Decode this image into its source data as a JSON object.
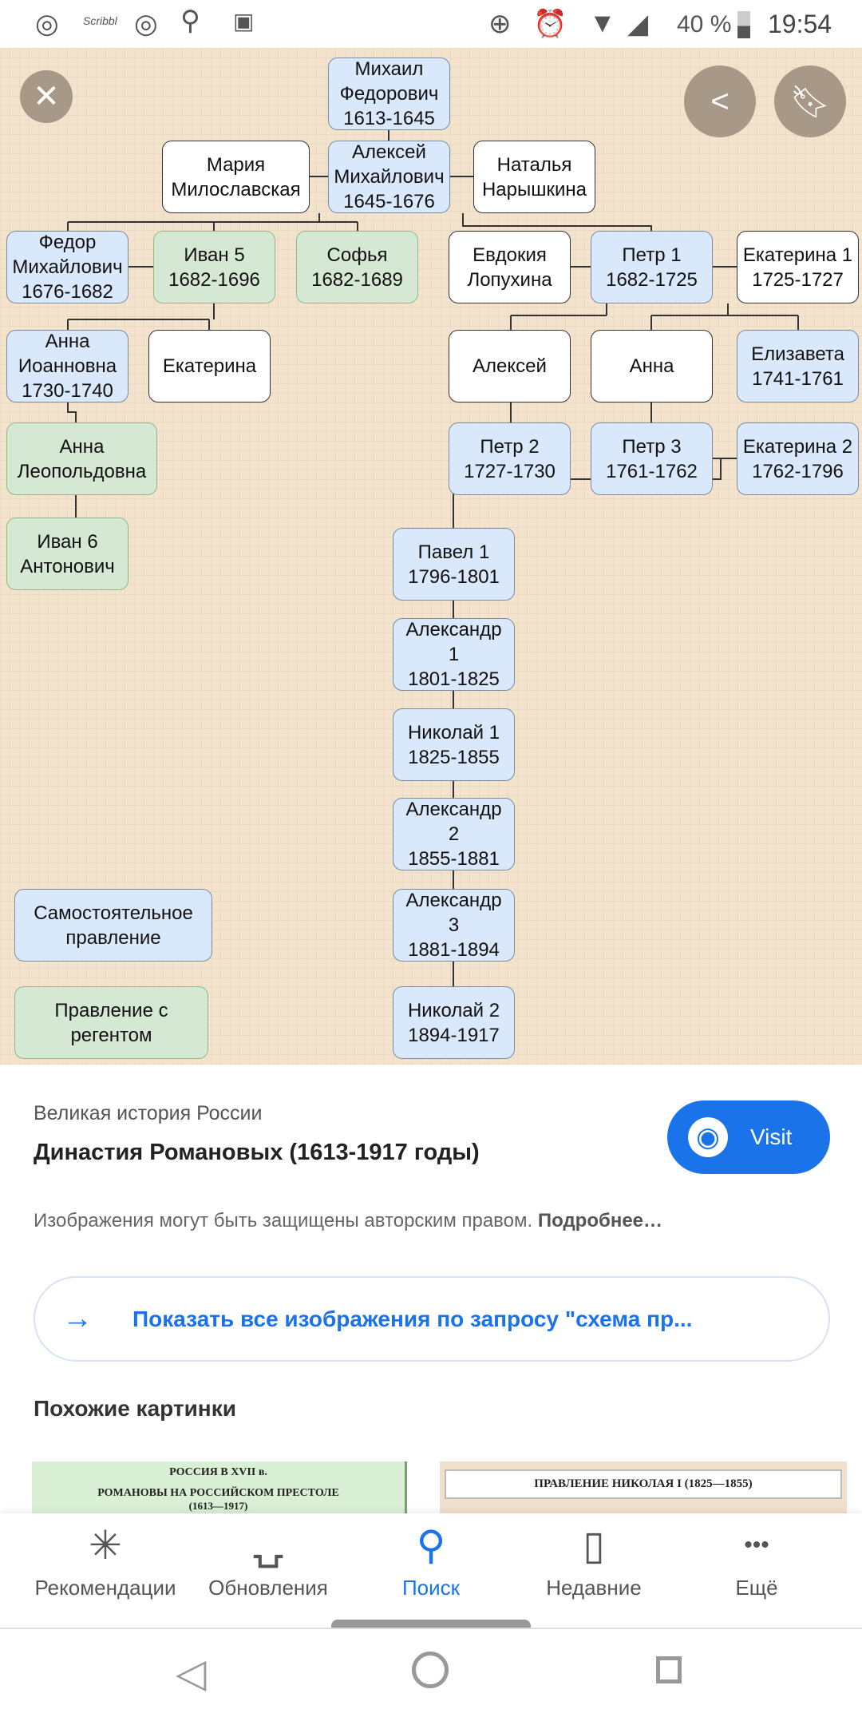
{
  "status_bar": {
    "icons": [
      "whatsapp-icon",
      "scribbl-icon",
      "viber-icon",
      "search-icon",
      "toggle-icon",
      "data-saver-icon",
      "alarm-icon",
      "wifi-icon",
      "signal-icon",
      "battery-icon"
    ],
    "scribbl": "Scribbl",
    "battery": "40 %",
    "time": "19:54"
  },
  "viewer": {
    "close": "close-icon",
    "share": "share-icon",
    "bookmark": "bookmark-icon"
  },
  "diagram": {
    "nodes": [
      {
        "text": "Михаил\nФедорович\n1613-1645",
        "kind": "blue"
      },
      {
        "text": "Мария\nМилославская",
        "kind": "white"
      },
      {
        "text": "Алексей\nМихайлович\n1645-1676",
        "kind": "blue"
      },
      {
        "text": "Наталья\nНарышкина",
        "kind": "white"
      },
      {
        "text": "Федор\nМихайлович\n1676-1682",
        "kind": "blue"
      },
      {
        "text": "Иван 5\n1682-1696",
        "kind": "green"
      },
      {
        "text": "Софья\n1682-1689",
        "kind": "green"
      },
      {
        "text": "Евдокия\nЛопухина",
        "kind": "white"
      },
      {
        "text": "Петр 1\n1682-1725",
        "kind": "blue"
      },
      {
        "text": "Екатерина 1\n1725-1727",
        "kind": "white"
      },
      {
        "text": "Анна\nИоанновна\n1730-1740",
        "kind": "blue"
      },
      {
        "text": "Екатерина",
        "kind": "white"
      },
      {
        "text": "Алексей",
        "kind": "white"
      },
      {
        "text": "Анна",
        "kind": "white"
      },
      {
        "text": "Елизавета\n1741-1761",
        "kind": "blue"
      },
      {
        "text": "Анна\nЛеопольдовна",
        "kind": "green"
      },
      {
        "text": "Петр 2\n1727-1730",
        "kind": "blue"
      },
      {
        "text": "Петр 3\n1761-1762",
        "kind": "blue"
      },
      {
        "text": "Екатерина 2\n1762-1796",
        "kind": "blue"
      },
      {
        "text": "Иван 6\nАнтонович",
        "kind": "green"
      },
      {
        "text": "Павел 1\n1796-1801",
        "kind": "blue"
      },
      {
        "text": "Александр\n1\n1801-1825",
        "kind": "blue"
      },
      {
        "text": "Николай 1\n1825-1855",
        "kind": "blue"
      },
      {
        "text": "Александр\n2\n1855-1881",
        "kind": "blue"
      },
      {
        "text": "Александр\n3\n1881-1894",
        "kind": "blue"
      },
      {
        "text": "Николай 2\n1894-1917",
        "kind": "blue"
      }
    ],
    "legend": [
      {
        "text": "Самостоятельное\nправление",
        "kind": "blue"
      },
      {
        "text": "Правление с\nрегентом",
        "kind": "green"
      }
    ]
  },
  "result": {
    "source": "Великая история России",
    "title": "Династия Романовых (1613-1917 годы)",
    "visit": "Visit",
    "copyright": "Изображения могут быть защищены авторским правом.",
    "more": "Подробнее…",
    "show_all": "Показать все изображения по запросу \"схема пр...",
    "similar": "Похожие картинки",
    "thumbs": [
      {
        "line1": "РОССИЯ В XVII в.",
        "line2": "РОМАНОВЫ НА РОССИЙСКОМ ПРЕСТОЛЕ",
        "line3": "(1613—1917)"
      },
      {
        "line1": "ПРАВЛЕНИЕ НИКОЛАЯ I (1825—1855)"
      }
    ]
  },
  "bottom_nav": [
    {
      "label": "Рекомендации",
      "icon": "asterisk-icon"
    },
    {
      "label": "Обновления",
      "icon": "updates-icon"
    },
    {
      "label": "Поиск",
      "icon": "search-icon",
      "active": true
    },
    {
      "label": "Недавние",
      "icon": "recent-icon"
    },
    {
      "label": "Ещё",
      "icon": "more-icon"
    }
  ],
  "colors": {
    "accent": "#1a73e8",
    "node_blue": "#dae8fc",
    "node_green": "#d5e8d4",
    "diagram_bg": "#f3e2cc"
  }
}
